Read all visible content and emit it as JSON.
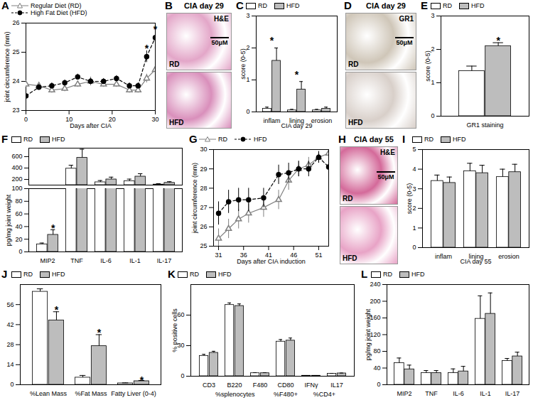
{
  "chart_data": [
    {
      "panel": "A",
      "type": "line",
      "xlabel": "Days after CIA",
      "ylabel": "joint circumference (mm)",
      "x": [
        0,
        3,
        6,
        9,
        12,
        15,
        18,
        21,
        24,
        26,
        28,
        30
      ],
      "xlim": [
        0,
        30
      ],
      "xticks": [
        0,
        10,
        20,
        30
      ],
      "ylim": [
        23,
        26
      ],
      "yticks": [
        23,
        24,
        25,
        26
      ],
      "series": [
        {
          "name": "Regular Diet (RD)",
          "color": "#808080",
          "marker": "triangle-open",
          "line_style": "solid",
          "values": [
            23.9,
            23.85,
            23.7,
            23.75,
            23.9,
            24.0,
            23.9,
            23.9,
            23.7,
            23.7,
            24.1,
            24.4
          ],
          "errors": [
            0.1,
            0.1,
            0.1,
            0.1,
            0.1,
            0.15,
            0.1,
            0.1,
            0.1,
            0.1,
            0.15,
            0.2
          ]
        },
        {
          "name": "High Fat Diet (HFD)",
          "color": "#000000",
          "marker": "circle",
          "line_style": "dashed",
          "values": [
            23.5,
            23.8,
            23.85,
            23.95,
            24.15,
            24.0,
            24.0,
            24.1,
            23.85,
            23.85,
            24.85,
            25.5
          ],
          "errors": [
            0.15,
            0.1,
            0.1,
            0.1,
            0.1,
            0.1,
            0.1,
            0.1,
            0.1,
            0.1,
            0.2,
            0.2
          ]
        }
      ],
      "annotations": [
        {
          "x": 28,
          "y": 25.2,
          "text": "*"
        },
        {
          "x": 30,
          "y": 25.85,
          "text": "*"
        }
      ]
    },
    {
      "panel": "B",
      "type": "image",
      "title": "CIA day 29",
      "stain": "H&E",
      "labels": [
        "RD",
        "HFD"
      ],
      "scale_bar": "50μM",
      "colors": [
        "#e3a6c8",
        "#d98fbb"
      ]
    },
    {
      "panel": "C",
      "type": "bar",
      "xlabel": "CIA day 29",
      "ylabel": "score (0-5)",
      "categories": [
        "inflam",
        "lining",
        "erosion"
      ],
      "ylim": [
        0,
        3
      ],
      "yticks": [
        0,
        1,
        2,
        3
      ],
      "series": [
        {
          "name": "RD",
          "color": "#ffffff",
          "values": [
            0.1,
            0.05,
            0.05
          ],
          "errors": [
            0.05,
            0.03,
            0.03
          ]
        },
        {
          "name": "HFD",
          "color": "#bdbdbd",
          "values": [
            1.6,
            0.7,
            0.1
          ],
          "errors": [
            0.4,
            0.25,
            0.05
          ]
        }
      ],
      "annotations": [
        {
          "category": "inflam",
          "y": 2.3,
          "text": "*"
        },
        {
          "category": "lining",
          "y": 1.25,
          "text": "*"
        }
      ]
    },
    {
      "panel": "D",
      "type": "image",
      "title": "CIA day 29",
      "stain": "GR1",
      "labels": [
        "RD",
        "HFD"
      ],
      "scale_bar": "50μM",
      "colors": [
        "#cfc6b8",
        "#d8cfc9"
      ]
    },
    {
      "panel": "E",
      "type": "bar",
      "ylabel": "score (0-5)",
      "categories": [
        "GR1 staining"
      ],
      "ylim": [
        0,
        3
      ],
      "yticks": [
        0,
        1,
        2,
        3
      ],
      "series": [
        {
          "name": "RD",
          "color": "#ffffff",
          "values": [
            1.35
          ],
          "errors": [
            0.15
          ]
        },
        {
          "name": "HFD",
          "color": "#bdbdbd",
          "values": [
            2.1
          ],
          "errors": [
            0.1
          ]
        }
      ],
      "annotations": [
        {
          "category": "GR1 staining",
          "series": "HFD",
          "y": 2.35,
          "text": "*"
        }
      ]
    },
    {
      "panel": "F",
      "type": "bar",
      "ylabel": "pg/mg joint weight",
      "categories": [
        "MIP2",
        "TNF",
        "IL-6",
        "IL-1",
        "IL-17"
      ],
      "y_segments": [
        {
          "ylim": [
            0,
            100
          ],
          "yticks": [
            0,
            20,
            40,
            60,
            80,
            100
          ]
        },
        {
          "ylim": [
            100,
            750
          ],
          "yticks": [
            200,
            400,
            600
          ]
        }
      ],
      "series": [
        {
          "name": "RD",
          "color": "#ffffff",
          "values": [
            12,
            390,
            150,
            170,
            110
          ],
          "errors": [
            2,
            60,
            30,
            35,
            15
          ]
        },
        {
          "name": "HFD",
          "color": "#bdbdbd",
          "values": [
            27,
            580,
            200,
            250,
            140
          ],
          "errors": [
            8,
            150,
            40,
            50,
            20
          ]
        }
      ],
      "annotations": [
        {
          "category": "MIP2",
          "series": "HFD",
          "y": 42,
          "text": "*"
        }
      ]
    },
    {
      "panel": "G",
      "type": "line",
      "xlabel": "Days after CIA induction",
      "ylabel": "joint circumference (mm)",
      "x": [
        31,
        33,
        35,
        37,
        40,
        43,
        45,
        47,
        49,
        51,
        53
      ],
      "xlim": [
        30,
        53
      ],
      "xticks": [
        31,
        36,
        41,
        46,
        51
      ],
      "ylim": [
        25,
        30
      ],
      "yticks": [
        25,
        26,
        27,
        28,
        29,
        30
      ],
      "series": [
        {
          "name": "RD",
          "color": "#808080",
          "marker": "triangle-open",
          "line_style": "solid",
          "values": [
            25.4,
            25.9,
            26.4,
            26.7,
            27.0,
            27.4,
            28.4,
            29.0,
            29.2,
            29.6,
            29.8
          ],
          "errors": [
            0.5,
            0.5,
            0.5,
            0.5,
            0.5,
            0.5,
            0.5,
            0.4,
            0.4,
            0.3,
            0.3
          ]
        },
        {
          "name": "HFD",
          "color": "#000000",
          "marker": "circle",
          "line_style": "dashed",
          "values": [
            26.7,
            27.3,
            27.4,
            27.4,
            27.5,
            28.7,
            28.8,
            29.0,
            29.0,
            29.6,
            29.1
          ],
          "errors": [
            0.6,
            0.6,
            0.6,
            0.6,
            0.5,
            0.5,
            0.5,
            0.4,
            0.4,
            0.3,
            0.3
          ]
        }
      ]
    },
    {
      "panel": "H",
      "type": "image",
      "title": "CIA day 55",
      "stain": "H&E",
      "labels": [
        "RD",
        "HFD"
      ],
      "scale_bar": "50μM",
      "colors": [
        "#d46a9a",
        "#e8a3c6"
      ]
    },
    {
      "panel": "I",
      "type": "bar",
      "xlabel": "CIA day 55",
      "ylabel": "score (0-5)",
      "categories": [
        "inflam",
        "lining",
        "erosion"
      ],
      "ylim": [
        0,
        5
      ],
      "yticks": [
        0,
        1,
        2,
        3,
        4,
        5
      ],
      "series": [
        {
          "name": "RD",
          "color": "#ffffff",
          "values": [
            3.4,
            3.9,
            3.6
          ],
          "errors": [
            0.3,
            0.4,
            0.4
          ]
        },
        {
          "name": "HFD",
          "color": "#bdbdbd",
          "values": [
            3.3,
            3.8,
            3.85
          ],
          "errors": [
            0.3,
            0.4,
            0.4
          ]
        }
      ]
    },
    {
      "panel": "J",
      "type": "bar",
      "categories": [
        "%Lean Mass",
        "%Fat Mass",
        "Fatty Liver (0-4)"
      ],
      "ylim": [
        0,
        70
      ],
      "yticks": [
        0,
        14,
        28,
        42,
        56
      ],
      "series": [
        {
          "name": "RD",
          "color": "#ffffff",
          "values": [
            65,
            5,
            1
          ],
          "errors": [
            2,
            1.5,
            0.3
          ]
        },
        {
          "name": "HFD",
          "color": "#bdbdbd",
          "values": [
            45,
            27,
            2.5
          ],
          "errors": [
            6,
            8,
            0.5
          ]
        }
      ],
      "annotations": [
        {
          "category": "%Lean Mass",
          "series": "HFD",
          "y": 54,
          "text": "*"
        },
        {
          "category": "%Fat Mass",
          "series": "HFD",
          "y": 38,
          "text": "*"
        },
        {
          "category": "Fatty Liver (0-4)",
          "series": "HFD",
          "y": 5,
          "text": "*"
        }
      ]
    },
    {
      "panel": "K",
      "type": "bar",
      "ylabel": "% positive cells",
      "categories": [
        "CD3",
        "B220",
        "F480",
        "CD80",
        "IFNγ",
        "IL17"
      ],
      "ylim": [
        0,
        90
      ],
      "yticks": [
        0,
        30,
        60
      ],
      "series": [
        {
          "name": "RD",
          "color": "#ffffff",
          "values": [
            20,
            70,
            3,
            34,
            0.5,
            2.5
          ],
          "errors": [
            1.5,
            2,
            0.5,
            2,
            0.2,
            0.3
          ]
        },
        {
          "name": "HFD",
          "color": "#bdbdbd",
          "values": [
            23,
            69,
            3,
            35,
            0.5,
            2.8
          ],
          "errors": [
            1.5,
            2,
            0.5,
            2.5,
            0.2,
            0.3
          ]
        }
      ],
      "groups": [
        {
          "label": "%splenocytes",
          "categories": [
            "CD3",
            "B220",
            "F480"
          ]
        },
        {
          "label": "%F480+",
          "categories": [
            "CD80"
          ]
        },
        {
          "label": "%CD4+",
          "categories": [
            "IFNγ",
            "IL17"
          ]
        }
      ]
    },
    {
      "panel": "L",
      "type": "bar",
      "ylabel": "pg/mg joint weight",
      "categories": [
        "MIP2",
        "TNF",
        "IL-6",
        "IL-1",
        "IL-17"
      ],
      "ylim": [
        0,
        240
      ],
      "yticks": [
        0,
        40,
        80,
        120,
        160,
        200,
        240
      ],
      "series": [
        {
          "name": "RD",
          "color": "#ffffff",
          "values": [
            52,
            28,
            28,
            158,
            57
          ],
          "errors": [
            12,
            6,
            10,
            55,
            6
          ]
        },
        {
          "name": "HFD",
          "color": "#bdbdbd",
          "values": [
            37,
            28,
            32,
            170,
            68
          ],
          "errors": [
            10,
            6,
            12,
            50,
            10
          ]
        }
      ]
    }
  ]
}
